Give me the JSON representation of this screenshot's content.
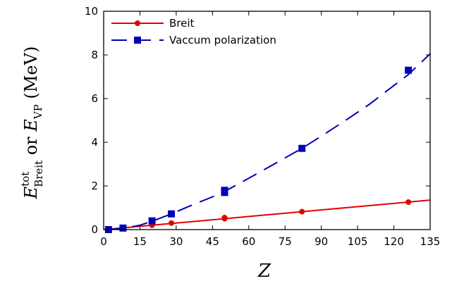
{
  "chart_data": {
    "type": "line",
    "xlabel": "Z",
    "ylabel": {
      "main1": "E",
      "sup1": "tot",
      "sub1": "Breit",
      "middle": " or ",
      "main2": "E",
      "sub2": "VP",
      "unit": " (MeV)"
    },
    "xlim": [
      0,
      135
    ],
    "ylim": [
      0,
      10
    ],
    "xticks": [
      "0",
      "15",
      "30",
      "45",
      "60",
      "75",
      "90",
      "105",
      "120",
      "135"
    ],
    "yticks": [
      "0",
      "2",
      "4",
      "6",
      "8",
      "10"
    ],
    "grid": false,
    "legend_position": "top-left",
    "series": [
      {
        "name": "Breit",
        "color": "#e00000",
        "marker": "circle",
        "line_style": "solid",
        "points": [
          [
            2,
            0.0
          ],
          [
            8,
            0.08
          ],
          [
            20,
            0.2
          ],
          [
            28,
            0.3
          ],
          [
            50,
            0.5
          ],
          [
            50,
            0.55
          ],
          [
            82,
            0.82
          ],
          [
            126,
            1.26
          ]
        ],
        "fit": [
          [
            0,
            0.0
          ],
          [
            135,
            1.35
          ]
        ]
      },
      {
        "name": "Vaccum polarization",
        "color": "#0000b8",
        "marker": "square",
        "line_style": "dashed",
        "points": [
          [
            2,
            0.0
          ],
          [
            8,
            0.07
          ],
          [
            20,
            0.4
          ],
          [
            28,
            0.72
          ],
          [
            50,
            1.7
          ],
          [
            50,
            1.8
          ],
          [
            82,
            3.72
          ],
          [
            126,
            7.3
          ]
        ],
        "fit": [
          [
            2,
            0.0
          ],
          [
            8,
            0.06
          ],
          [
            15,
            0.2
          ],
          [
            20,
            0.38
          ],
          [
            28,
            0.72
          ],
          [
            35,
            1.05
          ],
          [
            45,
            1.5
          ],
          [
            50,
            1.75
          ],
          [
            60,
            2.35
          ],
          [
            70,
            2.97
          ],
          [
            82,
            3.72
          ],
          [
            90,
            4.28
          ],
          [
            100,
            5.0
          ],
          [
            110,
            5.75
          ],
          [
            120,
            6.6
          ],
          [
            126,
            7.1
          ],
          [
            135,
            8.05
          ]
        ]
      }
    ]
  }
}
